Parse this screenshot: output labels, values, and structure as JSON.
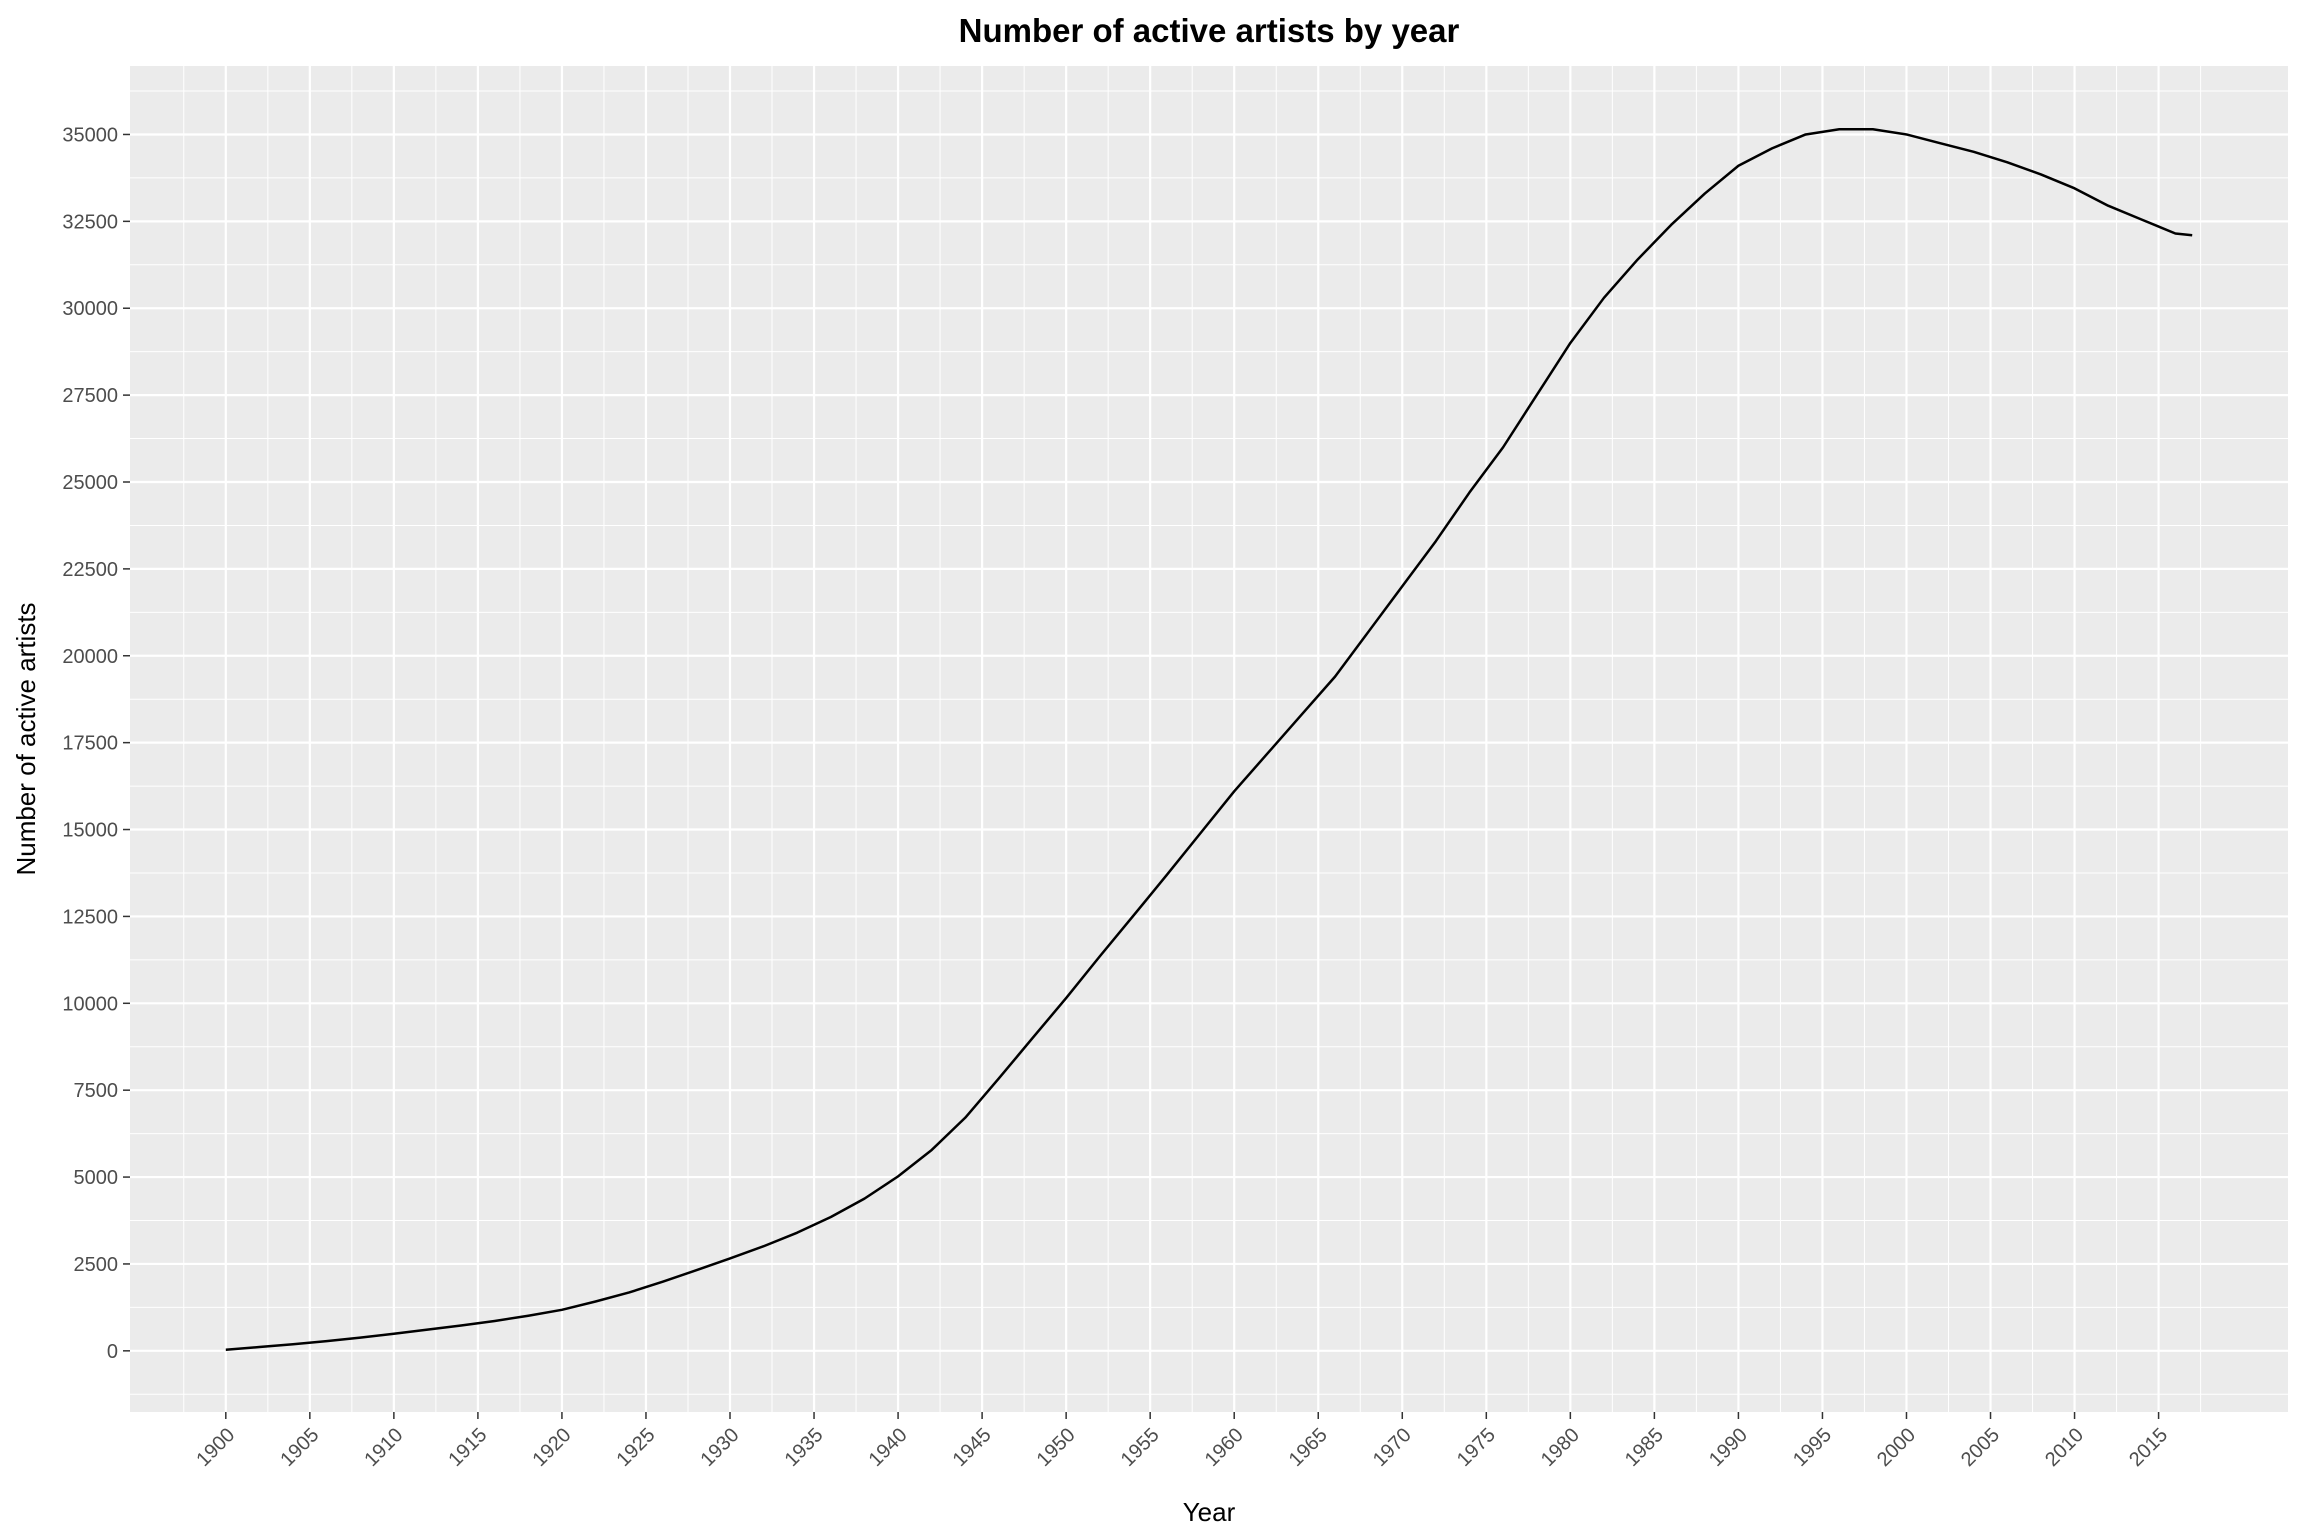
{
  "chart_data": {
    "type": "line",
    "title": "Number of active artists by year",
    "xlabel": "Year",
    "ylabel": "Number of active artists",
    "xlim": [
      1894.3,
      2022.7
    ],
    "ylim": [
      -1760,
      36970
    ],
    "x_ticks": [
      1900,
      1905,
      1910,
      1915,
      1920,
      1925,
      1930,
      1935,
      1940,
      1945,
      1950,
      1955,
      1960,
      1965,
      1970,
      1975,
      1980,
      1985,
      1990,
      1995,
      2000,
      2005,
      2010,
      2015
    ],
    "y_ticks": [
      0,
      2500,
      5000,
      7500,
      10000,
      12500,
      15000,
      17500,
      20000,
      22500,
      25000,
      27500,
      30000,
      32500,
      35000
    ],
    "x_tick_labels": [
      "1900",
      "1905",
      "1910",
      "1915",
      "1920",
      "1925",
      "1930",
      "1935",
      "1940",
      "1945",
      "1950",
      "1955",
      "1960",
      "1965",
      "1970",
      "1975",
      "1980",
      "1985",
      "1990",
      "1995",
      "2000",
      "2005",
      "2010",
      "2015"
    ],
    "y_tick_labels": [
      "0",
      "2500",
      "5000",
      "7500",
      "10000",
      "12500",
      "15000",
      "17500",
      "20000",
      "22500",
      "25000",
      "27500",
      "30000",
      "32500",
      "35000"
    ],
    "grid": true,
    "colors": {
      "panel": "#ebebeb",
      "grid": "#ffffff",
      "line": "#000000",
      "tick_text": "#4d4d4d",
      "tick_mark": "#333333"
    },
    "series": [
      {
        "x": [
          1900,
          1902,
          1904,
          1906,
          1908,
          1910,
          1912,
          1914,
          1916,
          1918,
          1920,
          1922,
          1924,
          1926,
          1928,
          1930,
          1932,
          1934,
          1936,
          1938,
          1940,
          1942,
          1944,
          1946,
          1948,
          1950,
          1952,
          1954,
          1956,
          1958,
          1960,
          1962,
          1964,
          1966,
          1968,
          1970,
          1972,
          1974,
          1976,
          1978,
          1980,
          1982,
          1984,
          1986,
          1988,
          1990,
          1992,
          1994,
          1996,
          1998,
          2000,
          2002,
          2004,
          2006,
          2008,
          2010,
          2012,
          2014,
          2016,
          2017
        ],
        "y": [
          30,
          110,
          190,
          280,
          380,
          490,
          610,
          730,
          860,
          1010,
          1180,
          1420,
          1680,
          1990,
          2320,
          2660,
          3010,
          3400,
          3850,
          4380,
          5020,
          5780,
          6710,
          7840,
          9000,
          10150,
          11350,
          12520,
          13700,
          14900,
          16100,
          17200,
          18300,
          19400,
          20700,
          22000,
          23300,
          24700,
          26000,
          27500,
          29000,
          30300,
          31400,
          32400,
          33300,
          34100,
          34600,
          35000,
          35150,
          35150,
          35000,
          34750,
          34500,
          34200,
          33850,
          33450,
          32950,
          32550,
          32150,
          32100
        ]
      }
    ]
  }
}
